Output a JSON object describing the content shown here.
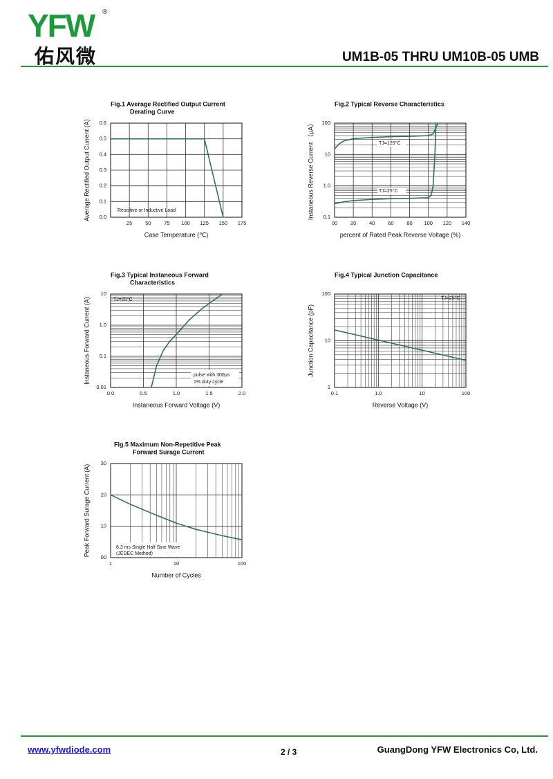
{
  "header": {
    "logo": "YFW",
    "logo_mark": "®",
    "logo_cn": "佑风微",
    "title": "UM1B-05 THRU UM10B-05  UMB"
  },
  "footer": {
    "website": "www.yfwdiode.com",
    "page": "2 / 3",
    "company": "GuangDong YFW Electronics Co, Ltd."
  },
  "chart_data": [
    {
      "type": "line",
      "title": [
        "Fig.1  Average Rectified Output Current",
        "Derating Curve"
      ],
      "x_label": "Case Temperature (℃)",
      "y_label": "Average Rectified Output Current (A)",
      "x": [
        0,
        125,
        150
      ],
      "values": [
        0.5,
        0.5,
        0
      ],
      "color": "#2f6f6a",
      "xlim": [
        0,
        175
      ],
      "ylim": [
        0,
        0.6
      ],
      "xticks": [
        25,
        50,
        75,
        100,
        125,
        150,
        175
      ],
      "yticks": [
        {
          "value": 0,
          "label": "0.0"
        },
        0.1,
        0.2,
        0.3,
        0.4,
        0.5,
        0.6
      ],
      "grid": true,
      "annotations": [
        "Resistive or Inductive Load"
      ]
    },
    {
      "type": "line",
      "title": [
        "Fig.2  Typical Reverse Characteristics"
      ],
      "x_label": "percent of Rated  Peak Reverse Voltage (%)",
      "y_label": "Instaneous Reverse Current （μA）",
      "series": [
        {
          "name": "TJ=125°C",
          "color": "#2f6f6a",
          "x": [
            0,
            5,
            10,
            20,
            40,
            60,
            80,
            100,
            105,
            108,
            110
          ],
          "values": [
            15,
            22,
            27,
            32,
            35,
            37,
            38,
            40,
            45,
            70,
            100
          ]
        },
        {
          "name": "TJ=25°C",
          "color": "#2f6f6a",
          "x": [
            0,
            10,
            20,
            40,
            60,
            80,
            100,
            103,
            105,
            107,
            108
          ],
          "values": [
            0.27,
            0.31,
            0.34,
            0.37,
            0.39,
            0.4,
            0.42,
            0.5,
            1,
            10,
            100
          ]
        }
      ],
      "xlim": [
        0,
        140
      ],
      "ylim": [
        0.1,
        100
      ],
      "yscale": "log",
      "xticks": [
        {
          "value": 0,
          "label": "00"
        },
        20,
        40,
        60,
        80,
        100,
        120,
        140
      ],
      "yticks": [
        100,
        10,
        {
          "value": 1,
          "label": "1.0"
        },
        0.1
      ],
      "grid": true,
      "minor_grid": "y"
    },
    {
      "type": "line",
      "title": [
        "Fig.3  Typical Instaneous Forward",
        "Characteristics"
      ],
      "x_label": "Instaneous Forward Voltage (V)",
      "y_label": "Instaneous Forward Current (A)",
      "x": [
        0.62,
        0.7,
        0.8,
        0.9,
        1.0,
        1.2,
        1.4,
        1.6,
        1.7
      ],
      "values": [
        0.01,
        0.05,
        0.15,
        0.3,
        0.5,
        1.5,
        3.5,
        7,
        10
      ],
      "color": "#2f6f6a",
      "xlim": [
        0,
        2
      ],
      "ylim": [
        0.01,
        10
      ],
      "yscale": "log",
      "xticks": [
        {
          "value": 0,
          "label": "0.0"
        },
        0.5,
        {
          "value": 1,
          "label": "1.0"
        },
        1.5,
        {
          "value": 2,
          "label": "2.0"
        }
      ],
      "yticks": [
        10,
        {
          "value": 1,
          "label": "1.0"
        },
        0.1,
        0.01
      ],
      "grid": true,
      "minor_grid": "y",
      "annotations": [
        "TJ=25°C",
        "pulse with 300μs",
        "1% duty cycle"
      ]
    },
    {
      "type": "line",
      "title": [
        "Fig.4  Typical Junction Capacitance"
      ],
      "x_label": "Reverse  Voltage (V)",
      "y_label": "Junction Capacitance (pF)",
      "x": [
        0.1,
        100
      ],
      "values": [
        17,
        3.8
      ],
      "color": "#2f6f6a",
      "xlim": [
        0.1,
        100
      ],
      "ylim": [
        1,
        100
      ],
      "xscale": "log",
      "yscale": "log",
      "xticks": [
        0.1,
        {
          "value": 1,
          "label": "1.0"
        },
        10,
        100
      ],
      "yticks": [
        100,
        10,
        1
      ],
      "grid": true,
      "minor_grid": "xy",
      "annotations": [
        "TJ=25°C"
      ]
    },
    {
      "type": "line",
      "title": [
        "Fig.5  Maximum Non-Repetitive Peak",
        "Forward Surage Current"
      ],
      "x_label": "Number of Cycles",
      "y_label": "Peak Forward Surage Current (A)",
      "x": [
        1,
        2,
        5,
        10,
        20,
        50,
        100
      ],
      "values": [
        20,
        17,
        13.5,
        11,
        9,
        7,
        5.7
      ],
      "color": "#2f6f6a",
      "xlim": [
        1,
        100
      ],
      "ylim": [
        0,
        30
      ],
      "xscale": "log",
      "xticks": [
        1,
        10,
        100
      ],
      "yticks": [
        {
          "value": 0,
          "label": "00"
        },
        10,
        20,
        30
      ],
      "grid": true,
      "minor_grid": "x",
      "annotations": [
        "8.3 ms Single Half Sine Wave",
        "(JEDEC Method)"
      ]
    }
  ]
}
